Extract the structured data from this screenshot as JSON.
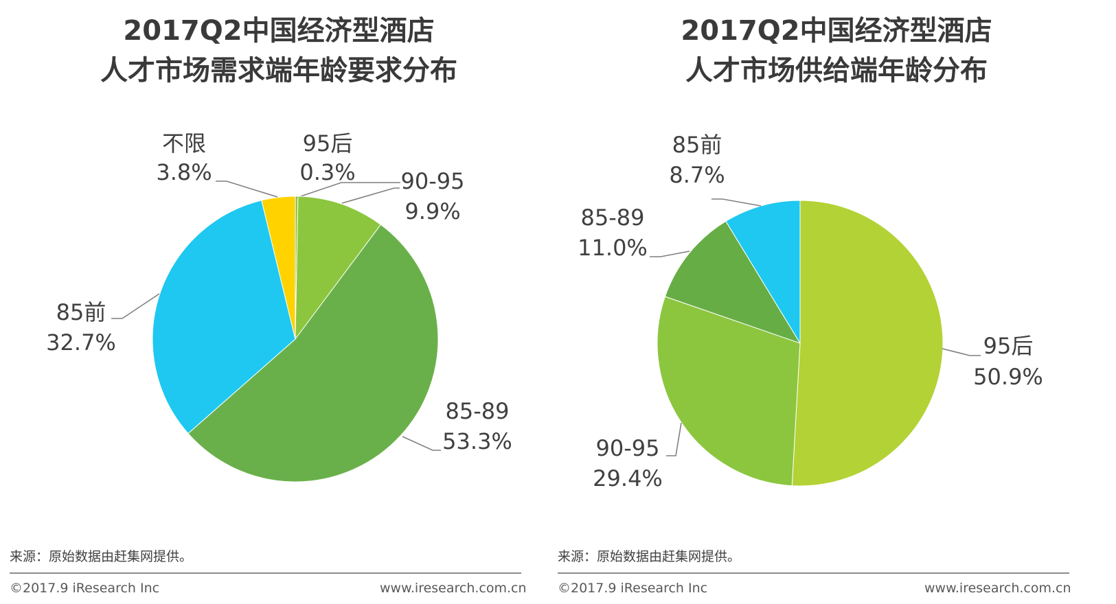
{
  "chart_data": [
    {
      "type": "pie",
      "title": [
        "2017Q2中国经济型酒店",
        "人才市场需求端年龄要求分布"
      ],
      "slices": [
        {
          "name": "95后",
          "value_label": "0.3%",
          "value": 0.3,
          "color": "#92c53e"
        },
        {
          "name": "90-95",
          "value_label": "9.9%",
          "value": 9.9,
          "color": "#8cc63f"
        },
        {
          "name": "85-89",
          "value_label": "53.3%",
          "value": 53.3,
          "color": "#6ab04a"
        },
        {
          "name": "85前",
          "value_label": "32.7%",
          "value": 32.7,
          "color": "#1ec8f0"
        },
        {
          "name": "不限",
          "value_label": "3.8%",
          "value": 3.8,
          "color": "#ffd200"
        }
      ],
      "start_angle": "12 o'clock",
      "direction": "clockwise"
    },
    {
      "type": "pie",
      "title": [
        "2017Q2中国经济型酒店",
        "人才市场供给端年龄分布"
      ],
      "slices": [
        {
          "name": "95后",
          "value_label": "50.9%",
          "value": 50.9,
          "color": "#b3d235"
        },
        {
          "name": "90-95",
          "value_label": "29.4%",
          "value": 29.4,
          "color": "#8cc63f"
        },
        {
          "name": "85-89",
          "value_label": "11.0%",
          "value": 11.0,
          "color": "#66ad45"
        },
        {
          "name": "85前",
          "value_label": "8.7%",
          "value": 8.7,
          "color": "#1ec8f0"
        }
      ],
      "start_angle": "12 o'clock",
      "direction": "clockwise"
    }
  ],
  "footer": {
    "source": "来源：原始数据由赶集网提供。",
    "copyright": "©2017.9 iResearch Inc",
    "website": "www.iresearch.com.cn"
  }
}
